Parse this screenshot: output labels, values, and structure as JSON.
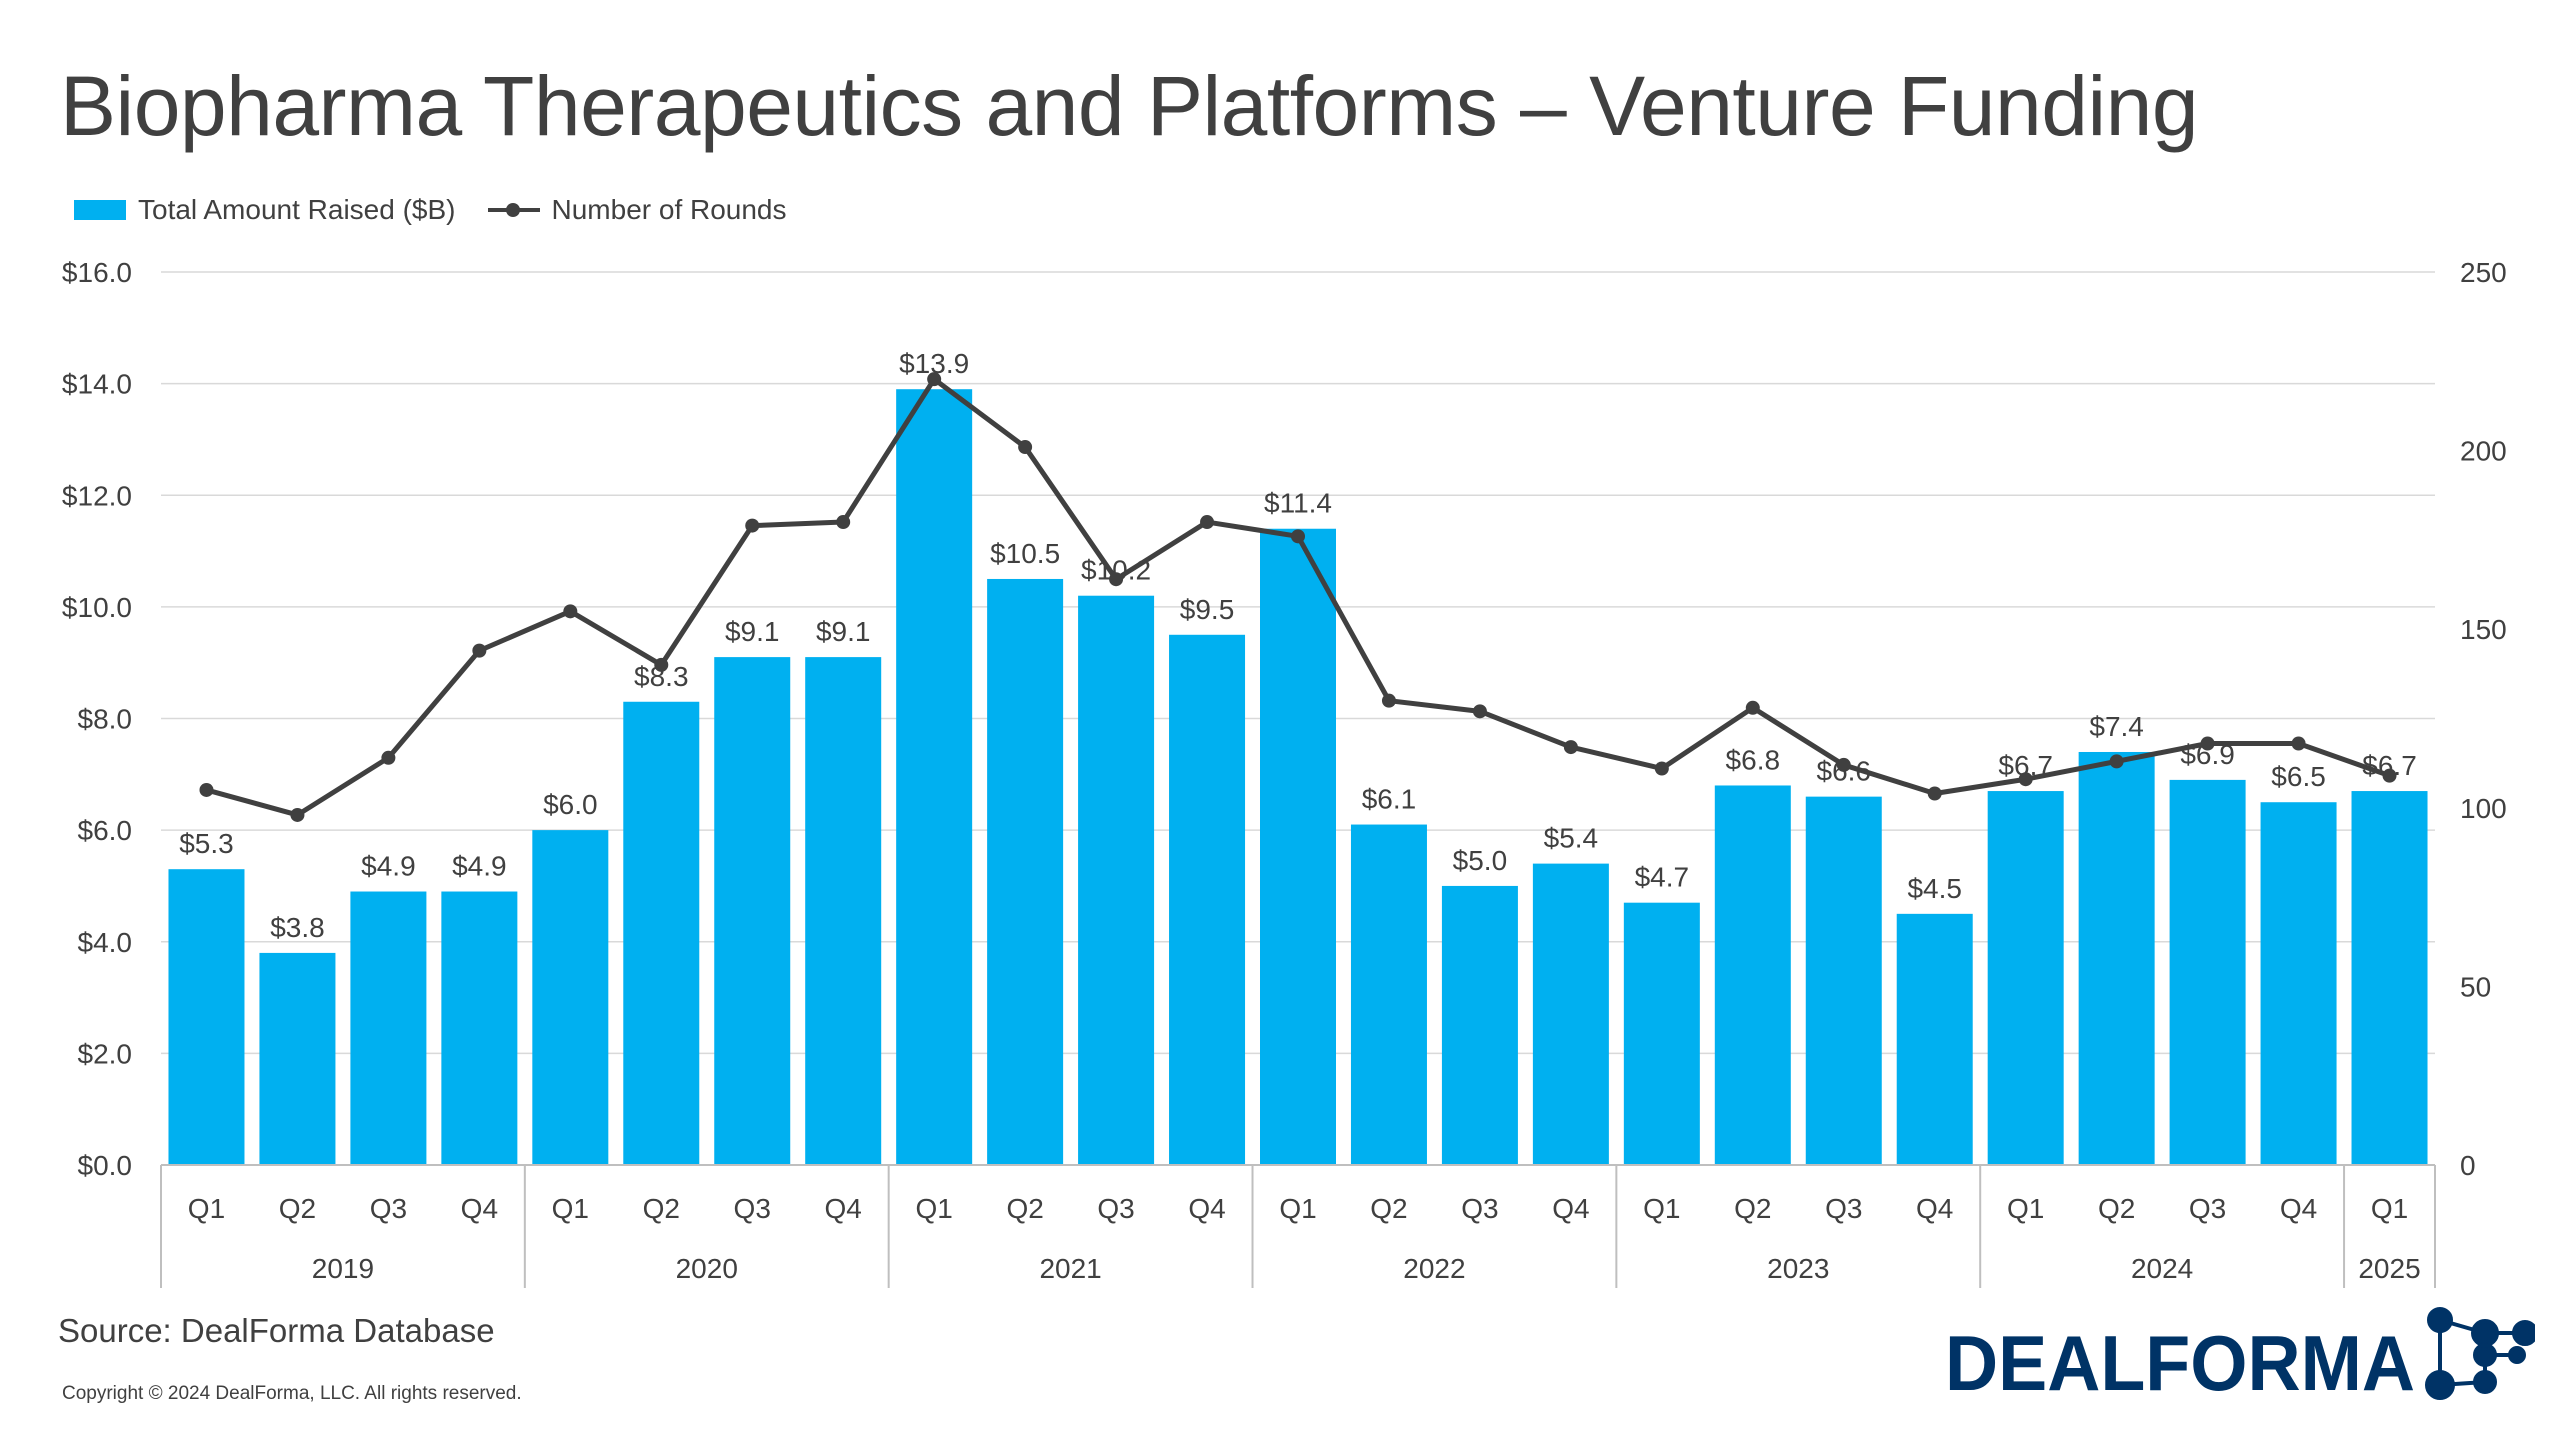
{
  "title": "Biopharma Therapeutics and Platforms – Venture Funding",
  "legend": {
    "bars": "Total Amount Raised ($B)",
    "line": "Number of Rounds"
  },
  "source": "Source: DealForma Database",
  "copyright": "Copyright © 2024 DealForma, LLC. All rights reserved.",
  "logo_text": "DEALFORMA",
  "colors": {
    "bar": "#00b0f0",
    "line": "#404040",
    "logo": "#003366",
    "grid": "#d9d9d9"
  },
  "chart_data": {
    "type": "bar+line",
    "quarters": [
      "Q1",
      "Q2",
      "Q3",
      "Q4",
      "Q1",
      "Q2",
      "Q3",
      "Q4",
      "Q1",
      "Q2",
      "Q3",
      "Q4",
      "Q1",
      "Q2",
      "Q3",
      "Q4",
      "Q1",
      "Q2",
      "Q3",
      "Q4",
      "Q1",
      "Q2",
      "Q3",
      "Q4",
      "Q1"
    ],
    "years": [
      {
        "label": "2019",
        "count": 4
      },
      {
        "label": "2020",
        "count": 4
      },
      {
        "label": "2021",
        "count": 4
      },
      {
        "label": "2022",
        "count": 4
      },
      {
        "label": "2023",
        "count": 4
      },
      {
        "label": "2024",
        "count": 4
      },
      {
        "label": "2025",
        "count": 1
      }
    ],
    "series": [
      {
        "name": "Total Amount Raised ($B)",
        "type": "bar",
        "axis": "left",
        "values": [
          5.3,
          3.8,
          4.9,
          4.9,
          6.0,
          8.3,
          9.1,
          9.1,
          13.9,
          10.5,
          10.2,
          9.5,
          11.4,
          6.1,
          5.0,
          5.4,
          4.7,
          6.8,
          6.6,
          4.5,
          6.7,
          7.4,
          6.9,
          6.5,
          6.7
        ],
        "labels": [
          "$5.3",
          "$3.8",
          "$4.9",
          "$4.9",
          "$6.0",
          "$8.3",
          "$9.1",
          "$9.1",
          "$13.9",
          "$10.5",
          "$10.2",
          "$9.5",
          "$11.4",
          "$6.1",
          "$5.0",
          "$5.4",
          "$4.7",
          "$6.8",
          "$6.6",
          "$4.5",
          "$6.7",
          "$7.4",
          "$6.9",
          "$6.5",
          "$6.7"
        ]
      },
      {
        "name": "Number of Rounds",
        "type": "line",
        "axis": "right",
        "values": [
          105,
          98,
          114,
          144,
          155,
          140,
          179,
          180,
          220,
          201,
          164,
          180,
          176,
          130,
          127,
          117,
          111,
          128,
          112,
          104,
          108,
          113,
          118,
          118,
          109
        ]
      }
    ],
    "left_axis": {
      "range": [
        0,
        16
      ],
      "ticks": [
        0,
        2,
        4,
        6,
        8,
        10,
        12,
        14,
        16
      ],
      "tick_labels": [
        "$0.0",
        "$2.0",
        "$4.0",
        "$6.0",
        "$8.0",
        "$10.0",
        "$12.0",
        "$14.0",
        "$16.0"
      ]
    },
    "right_axis": {
      "range": [
        0,
        250
      ],
      "ticks": [
        0,
        50,
        100,
        150,
        200,
        250
      ],
      "tick_labels": [
        "0",
        "50",
        "100",
        "150",
        "200",
        "250"
      ]
    },
    "grid": true,
    "legend_placement": "top-left"
  }
}
